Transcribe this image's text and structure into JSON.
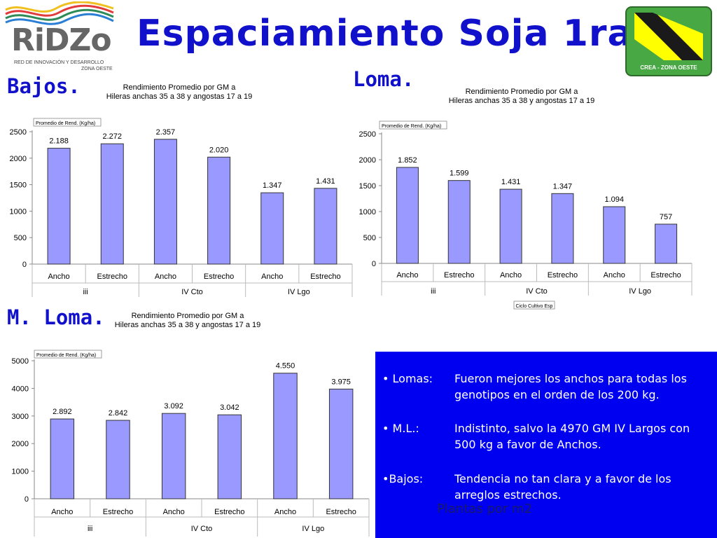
{
  "slide": {
    "title": "Espaciamiento Soja 1ra",
    "labels": {
      "bajos": "Bajos.",
      "loma": "Loma.",
      "media_loma": "M. Loma."
    }
  },
  "logos": {
    "ridzo": {
      "name": "RiDZo",
      "tagline": "RED DE INNOVACIÓN Y DESARROLLO",
      "tagline2": "ZONA OESTE"
    },
    "crea": {
      "text": "CREA - ZONA OESTE",
      "colors": [
        "#4caf50",
        "#ffff00",
        "#1a1a1a"
      ]
    }
  },
  "colors": {
    "bar": "#9999ff",
    "bar_stroke": "#333333",
    "title": "#1111cc",
    "box": "#0000f0"
  },
  "chart_data": [
    {
      "type": "bar",
      "section": "Bajos.",
      "title": "Rendimiento Promedio por GM a",
      "subtitle": "Hileras anchas 35 a 38  y angostas 17 a 19",
      "legend_tag": "Promedio de Rend. (Kg/ha)",
      "categories": [
        "Ancho",
        "Estrecho",
        "Ancho",
        "Estrecho",
        "Ancho",
        "Estrecho"
      ],
      "groups": [
        "iii",
        "IV Cto",
        "IV Lgo"
      ],
      "values": [
        2188,
        2272,
        2357,
        2020,
        1347,
        1431
      ],
      "value_labels": [
        "2.188",
        "2.272",
        "2.357",
        "2.020",
        "1.347",
        "1.431"
      ],
      "yticks": [
        "0",
        "500",
        "1000",
        "1500",
        "2000",
        "2500"
      ],
      "ylim": [
        0,
        2500
      ],
      "field_tag": ""
    },
    {
      "type": "bar",
      "section": "Loma.",
      "title": "Rendimiento Promedio por GM a",
      "subtitle": "Hileras anchas 35 a 38  y angostas 17 a 19",
      "legend_tag": "Promedio de Rend. (Kg/ha)",
      "categories": [
        "Ancho",
        "Estrecho",
        "Ancho",
        "Estrecho",
        "Ancho",
        "Estrecho"
      ],
      "groups": [
        "iii",
        "IV Cto",
        "IV Lgo"
      ],
      "values": [
        1852,
        1599,
        1431,
        1347,
        1094,
        757
      ],
      "value_labels": [
        "1.852",
        "1.599",
        "1.431",
        "1.347",
        "1.094",
        "757"
      ],
      "yticks": [
        "0",
        "500",
        "1000",
        "1500",
        "2000",
        "2500"
      ],
      "ylim": [
        0,
        2500
      ],
      "field_tag": "Ciclo Cultivo Esp"
    },
    {
      "type": "bar",
      "section": "M. Loma.",
      "title": "Rendimiento Promedio por GM a",
      "subtitle": "Hileras anchas 35 a 38  y angostas 17 a 19",
      "legend_tag": "Promedio de Rend. (Kg/ha)",
      "categories": [
        "Ancho",
        "Estrecho",
        "Ancho",
        "Estrecho",
        "Ancho",
        "Estrecho"
      ],
      "groups": [
        "iii",
        "IV Cto",
        "IV Lgo"
      ],
      "values": [
        2892,
        2842,
        3092,
        3042,
        4550,
        3975
      ],
      "value_labels": [
        "2.892",
        "2.842",
        "3.092",
        "3.042",
        "4.550",
        "3.975"
      ],
      "yticks": [
        "0",
        "1000",
        "2000",
        "3000",
        "4000",
        "5000"
      ],
      "ylim": [
        0,
        5000
      ],
      "field_tag": ""
    }
  ],
  "notes": {
    "items": [
      {
        "key": "• Lomas:",
        "text": "Fueron mejores los anchos para todas los genotipos en el orden de los 200 kg."
      },
      {
        "key": "• M.L.:",
        "text": "Indistinto, salvo la 4970 GM IV Largos con 500 kg a favor de Anchos."
      },
      {
        "key": "•Bajos:",
        "text": "Tendencia no tan clara y a favor de los arreglos estrechos."
      }
    ],
    "overlay": "Plantas por m2"
  }
}
